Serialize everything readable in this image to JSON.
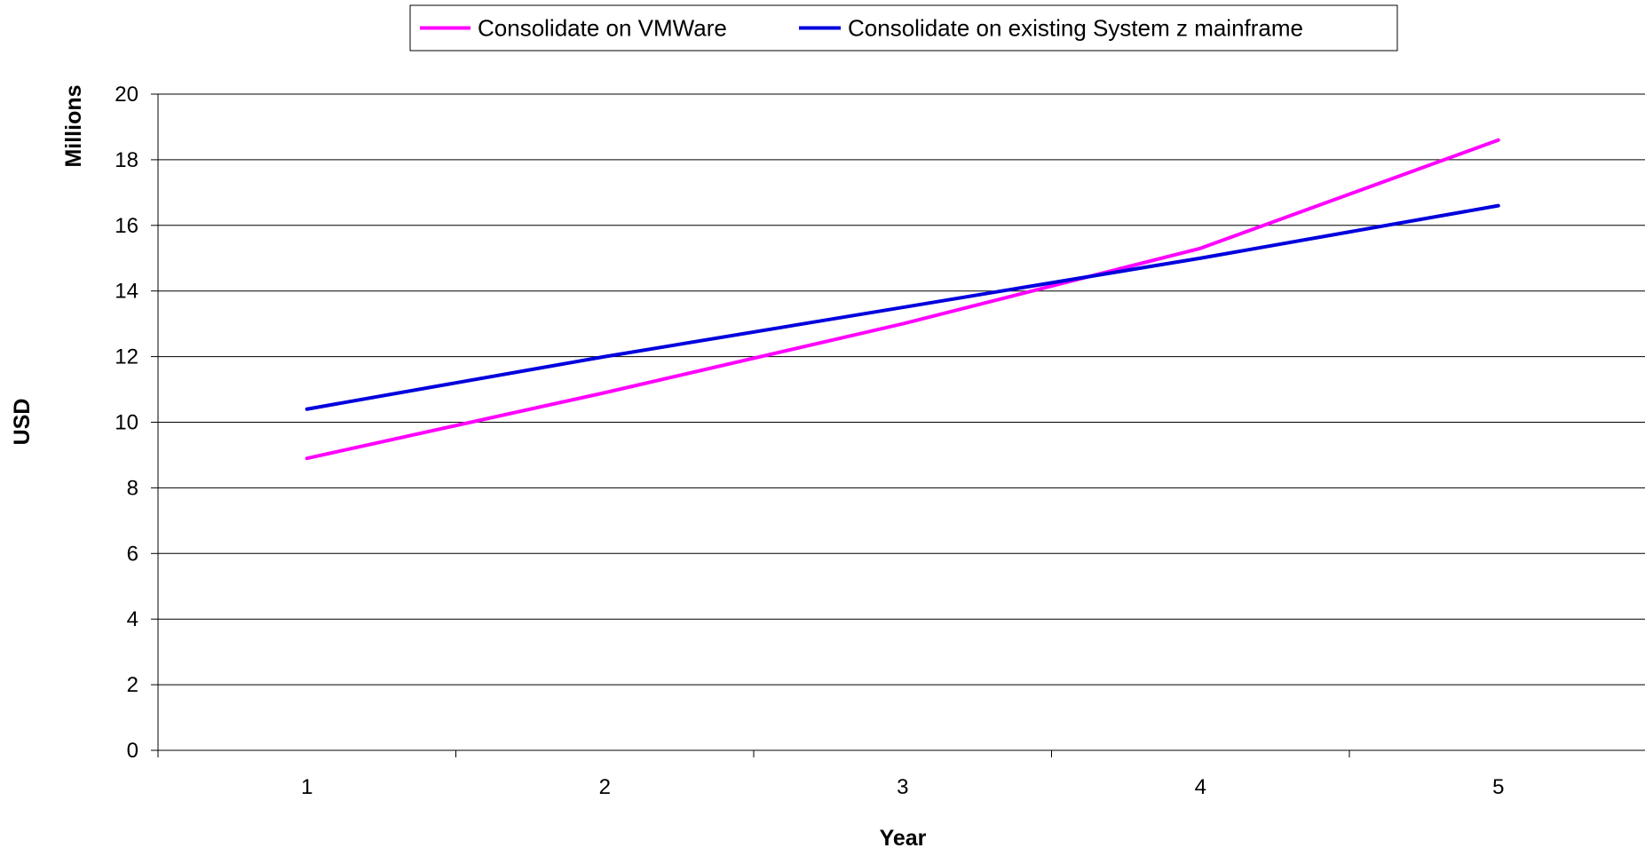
{
  "chart_data": {
    "type": "line",
    "title": "",
    "xlabel": "Year",
    "ylabel": "USD",
    "y_unit_label": "Millions",
    "categories": [
      "1",
      "2",
      "3",
      "4",
      "5"
    ],
    "ylim": [
      0,
      20
    ],
    "yticks": [
      0,
      2,
      4,
      6,
      8,
      10,
      12,
      14,
      16,
      18,
      20
    ],
    "grid": "horizontal",
    "legend_position": "top",
    "series": [
      {
        "name": "Consolidate on VMWare",
        "color": "#ff00ff",
        "values": [
          8.9,
          10.9,
          13.0,
          15.3,
          18.6
        ]
      },
      {
        "name": "Consolidate on existing System z mainframe",
        "color": "#0000dd",
        "values": [
          10.4,
          12.0,
          13.5,
          15.0,
          16.6
        ]
      }
    ]
  }
}
